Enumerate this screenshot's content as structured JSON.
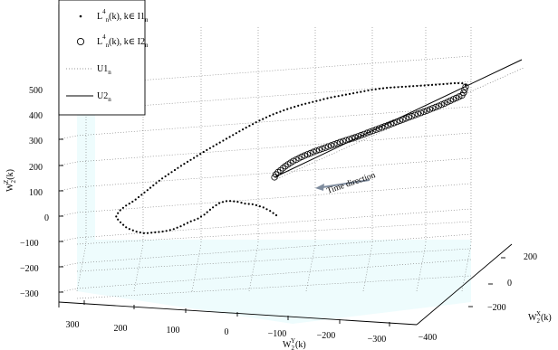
{
  "chart_data": {
    "type": "scatter",
    "projection": "3d",
    "axes": {
      "x": {
        "label": "W2X(k)",
        "label_main": "W",
        "label_sub": "2",
        "label_sup": "X",
        "label_suffix": "(k)",
        "ticks": [
          -200,
          0,
          200
        ]
      },
      "y": {
        "label": "W2Y(k)",
        "label_main": "W",
        "label_sub": "2",
        "label_sup": "Y",
        "label_suffix": "(k)",
        "ticks": [
          300,
          200,
          100,
          0,
          -100,
          -200,
          -300,
          -400
        ]
      },
      "z": {
        "label": "W2Z(k)",
        "label_main": "W",
        "label_sub": "2",
        "label_sup": "Z",
        "label_suffix": "(k)",
        "ticks": [
          500,
          400,
          300,
          200,
          100,
          0,
          -100,
          -200,
          -300
        ]
      }
    },
    "grid": true,
    "legend_position": "top-left",
    "series": [
      {
        "name": "L4n(k), k∈ I1n",
        "marker": "dot"
      },
      {
        "name": "L4n(k), k∈ I2n",
        "marker": "circle"
      },
      {
        "name": "U1n",
        "line": "dotted"
      },
      {
        "name": "U2n",
        "line": "solid"
      }
    ],
    "annotations": [
      "Time direction"
    ],
    "series_I1_screen_path": [
      [
        305,
        238
      ],
      [
        298,
        233
      ],
      [
        290,
        229
      ],
      [
        280,
        226
      ],
      [
        270,
        225
      ],
      [
        262,
        223
      ],
      [
        252,
        222
      ],
      [
        243,
        224
      ],
      [
        234,
        230
      ],
      [
        226,
        237
      ],
      [
        218,
        242
      ],
      [
        210,
        245
      ],
      [
        200,
        250
      ],
      [
        190,
        254
      ],
      [
        180,
        256
      ],
      [
        170,
        257
      ],
      [
        160,
        258
      ],
      [
        150,
        256
      ],
      [
        140,
        252
      ],
      [
        132,
        245
      ],
      [
        128,
        240
      ],
      [
        131,
        234
      ],
      [
        138,
        228
      ],
      [
        148,
        222
      ],
      [
        158,
        214
      ],
      [
        168,
        206
      ],
      [
        178,
        198
      ],
      [
        190,
        190
      ],
      [
        202,
        182
      ],
      [
        215,
        174
      ],
      [
        228,
        166
      ],
      [
        242,
        158
      ],
      [
        256,
        150
      ],
      [
        270,
        142
      ],
      [
        285,
        134
      ],
      [
        300,
        127
      ],
      [
        316,
        121
      ],
      [
        332,
        116
      ],
      [
        348,
        112
      ],
      [
        364,
        108
      ],
      [
        380,
        105
      ],
      [
        396,
        102
      ],
      [
        412,
        99
      ],
      [
        428,
        97
      ],
      [
        444,
        96
      ],
      [
        460,
        95
      ],
      [
        476,
        94
      ],
      [
        490,
        93
      ],
      [
        502,
        92
      ],
      [
        510,
        92
      ],
      [
        514,
        94
      ]
    ],
    "series_I2_screen_path": [
      [
        514,
        96
      ],
      [
        511,
        105
      ],
      [
        500,
        110
      ],
      [
        487,
        116
      ],
      [
        472,
        122
      ],
      [
        456,
        128
      ],
      [
        440,
        134
      ],
      [
        424,
        140
      ],
      [
        408,
        146
      ],
      [
        392,
        152
      ],
      [
        376,
        157
      ],
      [
        360,
        163
      ],
      [
        346,
        168
      ],
      [
        334,
        173
      ],
      [
        324,
        178
      ],
      [
        316,
        183
      ],
      [
        310,
        188
      ],
      [
        305,
        192
      ],
      [
        303,
        196
      ]
    ],
    "series_I2_counts": [
      40,
      30
    ],
    "U2_screen_line": [
      [
        303,
        196
      ],
      [
        576,
        66
      ]
    ],
    "time_arrow_screen": [
      [
        408,
        199
      ],
      [
        348,
        208
      ]
    ]
  }
}
